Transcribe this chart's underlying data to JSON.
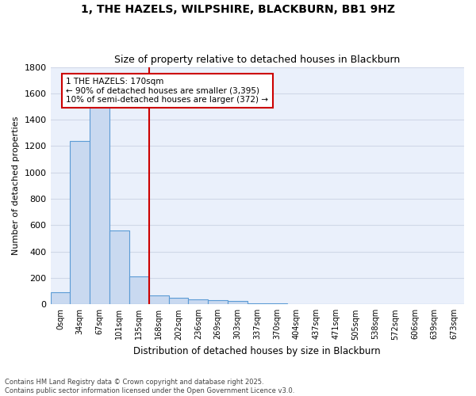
{
  "title_line1": "1, THE HAZELS, WILPSHIRE, BLACKBURN, BB1 9HZ",
  "title_line2": "Size of property relative to detached houses in Blackburn",
  "xlabel": "Distribution of detached houses by size in Blackburn",
  "ylabel": "Number of detached properties",
  "footnote": "Contains HM Land Registry data © Crown copyright and database right 2025.\nContains public sector information licensed under the Open Government Licence v3.0.",
  "bin_labels": [
    "0sqm",
    "34sqm",
    "67sqm",
    "101sqm",
    "135sqm",
    "168sqm",
    "202sqm",
    "236sqm",
    "269sqm",
    "303sqm",
    "337sqm",
    "370sqm",
    "404sqm",
    "437sqm",
    "471sqm",
    "505sqm",
    "538sqm",
    "572sqm",
    "606sqm",
    "639sqm",
    "673sqm"
  ],
  "bar_values": [
    90,
    1240,
    1515,
    560,
    210,
    70,
    50,
    40,
    30,
    25,
    10,
    5,
    2,
    1,
    0,
    0,
    0,
    0,
    0,
    0,
    0
  ],
  "bar_color": "#c9d9f0",
  "bar_edge_color": "#5b9bd5",
  "grid_color": "#d0d8e8",
  "background_color": "#eaf0fb",
  "vline_x_index": 4.5,
  "vline_color": "#cc0000",
  "annotation_text": "1 THE HAZELS: 170sqm\n← 90% of detached houses are smaller (3,395)\n10% of semi-detached houses are larger (372) →",
  "annotation_box_color": "#cc0000",
  "ylim": [
    0,
    1800
  ],
  "yticks": [
    0,
    200,
    400,
    600,
    800,
    1000,
    1200,
    1400,
    1600,
    1800
  ]
}
